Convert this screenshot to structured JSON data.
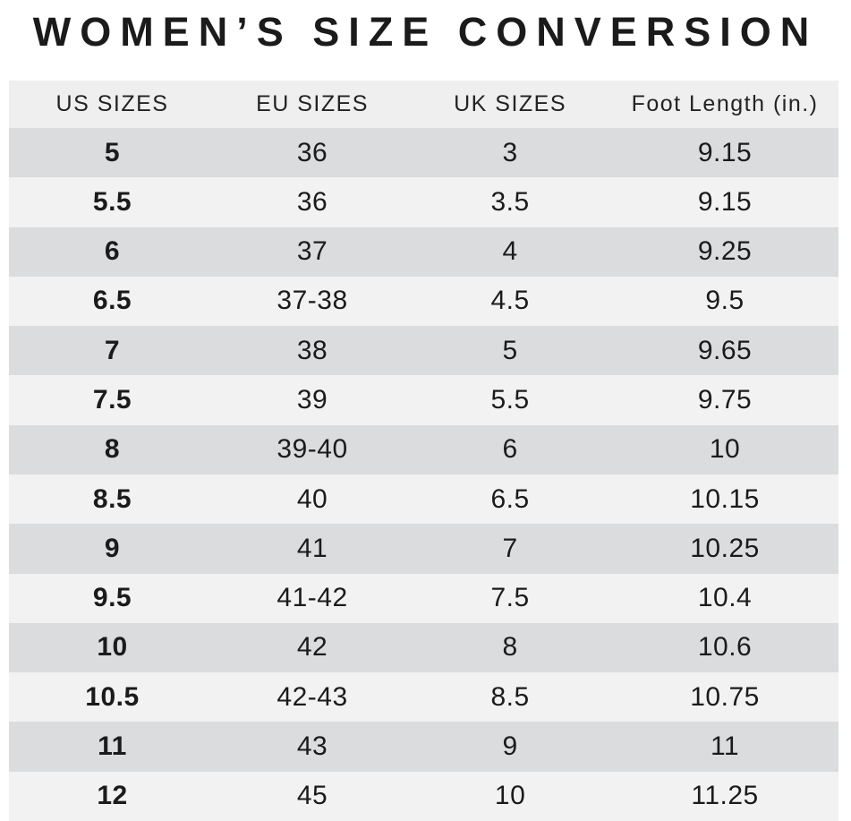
{
  "title": "WOMEN’S SIZE CONVERSION",
  "table": {
    "columns": [
      "US SIZES",
      "EU SIZES",
      "UK SIZES",
      "Foot Length (in.)"
    ],
    "rows": [
      [
        "5",
        "36",
        "3",
        "9.15"
      ],
      [
        "5.5",
        "36",
        "3.5",
        "9.15"
      ],
      [
        "6",
        "37",
        "4",
        "9.25"
      ],
      [
        "6.5",
        "37-38",
        "4.5",
        "9.5"
      ],
      [
        "7",
        "38",
        "5",
        "9.65"
      ],
      [
        "7.5",
        "39",
        "5.5",
        "9.75"
      ],
      [
        "8",
        "39-40",
        "6",
        "10"
      ],
      [
        "8.5",
        "40",
        "6.5",
        "10.15"
      ],
      [
        "9",
        "41",
        "7",
        "10.25"
      ],
      [
        "9.5",
        "41-42",
        "7.5",
        "10.4"
      ],
      [
        "10",
        "42",
        "8",
        "10.6"
      ],
      [
        "10.5",
        "42-43",
        "8.5",
        "10.75"
      ],
      [
        "11",
        "43",
        "9",
        "11"
      ],
      [
        "12",
        "45",
        "10",
        "11.25"
      ]
    ]
  },
  "colors": {
    "page_bg": "#ffffff",
    "header_bg": "#efeff0",
    "row_dark": "#dbdcde",
    "row_light": "#f2f2f3",
    "text": "#1b1b1b"
  }
}
